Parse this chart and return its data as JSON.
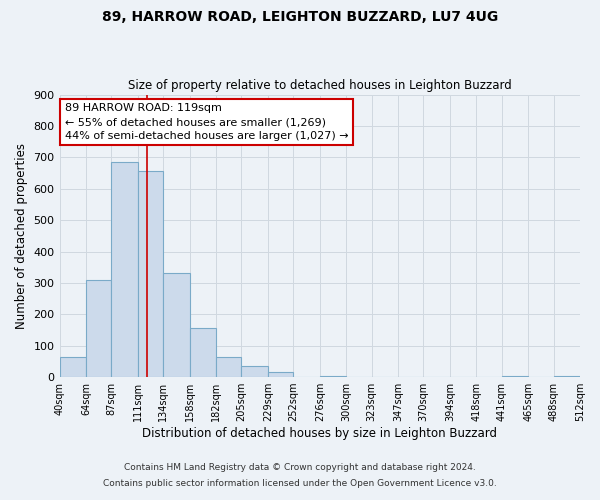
{
  "title": "89, HARROW ROAD, LEIGHTON BUZZARD, LU7 4UG",
  "subtitle": "Size of property relative to detached houses in Leighton Buzzard",
  "xlabel": "Distribution of detached houses by size in Leighton Buzzard",
  "ylabel": "Number of detached properties",
  "footer1": "Contains HM Land Registry data © Crown copyright and database right 2024.",
  "footer2": "Contains public sector information licensed under the Open Government Licence v3.0.",
  "bar_edges": [
    40,
    64,
    87,
    111,
    134,
    158,
    182,
    205,
    229,
    252,
    276,
    300,
    323,
    347,
    370,
    394,
    418,
    441,
    465,
    488,
    512
  ],
  "bar_heights": [
    65,
    310,
    685,
    655,
    330,
    155,
    65,
    35,
    15,
    0,
    5,
    0,
    0,
    0,
    0,
    0,
    0,
    5,
    0,
    5,
    0
  ],
  "bar_color": "#ccdaeb",
  "bar_edgecolor": "#7aaac8",
  "property_line_x": 119,
  "property_line_color": "#cc0000",
  "annotation_line1": "89 HARROW ROAD: 119sqm",
  "annotation_line2": "← 55% of detached houses are smaller (1,269)",
  "annotation_line3": "44% of semi-detached houses are larger (1,027) →",
  "ylim": [
    0,
    900
  ],
  "yticks": [
    0,
    100,
    200,
    300,
    400,
    500,
    600,
    700,
    800,
    900
  ],
  "grid_color": "#d0d8e0",
  "background_color": "#edf2f7",
  "tick_labels": [
    "40sqm",
    "64sqm",
    "87sqm",
    "111sqm",
    "134sqm",
    "158sqm",
    "182sqm",
    "205sqm",
    "229sqm",
    "252sqm",
    "276sqm",
    "300sqm",
    "323sqm",
    "347sqm",
    "370sqm",
    "394sqm",
    "418sqm",
    "441sqm",
    "465sqm",
    "488sqm",
    "512sqm"
  ]
}
